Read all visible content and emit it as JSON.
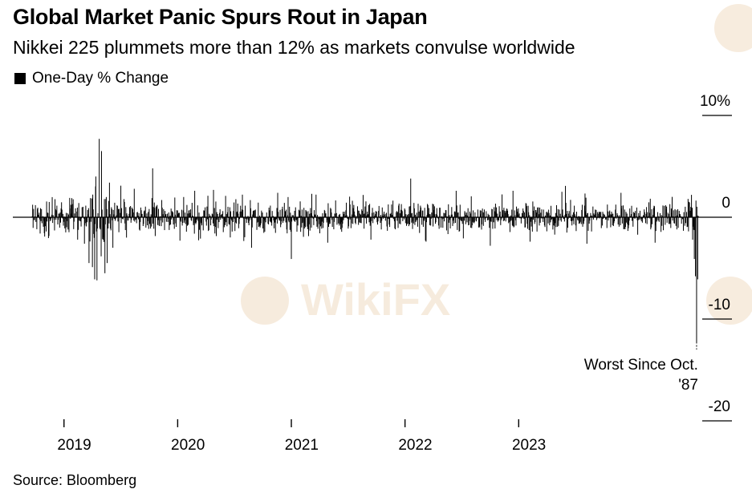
{
  "title": "Global Market Panic Spurs Rout in Japan",
  "subtitle": "Nikkei 225 plummets more than 12% as markets convulse worldwide",
  "legend": {
    "label": "One-Day % Change"
  },
  "source": "Source: Bloomberg",
  "watermark": "WikiFX",
  "colors": {
    "bar": "#000000",
    "axis": "#000000",
    "watermark": "#f0dcc2"
  },
  "chart_data": {
    "type": "bar",
    "title": "Global Market Panic Spurs Rout in Japan",
    "series": [
      {
        "name": "One-Day % Change"
      }
    ],
    "ylim": [
      -20,
      10
    ],
    "yticks": [
      {
        "value": 10,
        "label": "10%"
      },
      {
        "value": 0,
        "label": "0"
      },
      {
        "value": -10,
        "label": "-10"
      },
      {
        "value": -20,
        "label": "-20"
      }
    ],
    "xlim": [
      2018.55,
      2024.65
    ],
    "xticks": [
      {
        "value": 2019.0,
        "label": "2019"
      },
      {
        "value": 2020.0,
        "label": "2020"
      },
      {
        "value": 2021.0,
        "label": "2021"
      },
      {
        "value": 2022.0,
        "label": "2022"
      },
      {
        "value": 2023.0,
        "label": "2023"
      }
    ],
    "x_label_offset": 0.5,
    "daily_change": {
      "start": 2018.72,
      "end": 2024.58,
      "sessions": 1430,
      "typical_abs": 1.1,
      "regimes": [
        {
          "from": 2018.72,
          "to": 2018.98,
          "amp": 1.2
        },
        {
          "from": 2018.98,
          "to": 2019.22,
          "amp": 1.3
        },
        {
          "from": 2019.22,
          "to": 2019.42,
          "amp": 2.6
        },
        {
          "from": 2019.42,
          "to": 2020.6,
          "amp": 1.25
        },
        {
          "from": 2020.6,
          "to": 2021.55,
          "amp": 1.15
        },
        {
          "from": 2021.55,
          "to": 2024.48,
          "amp": 1.05
        },
        {
          "from": 2024.48,
          "to": 2024.58,
          "amp": 1.4
        }
      ],
      "notable": [
        {
          "x": 2018.79,
          "value": -1.6
        },
        {
          "x": 2018.83,
          "value": -1.9
        },
        {
          "x": 2018.87,
          "value": 1.5
        },
        {
          "x": 2019.05,
          "value": 1.9
        },
        {
          "x": 2019.12,
          "value": -2.2
        },
        {
          "x": 2019.18,
          "value": -2.6
        },
        {
          "x": 2019.22,
          "value": -4.5
        },
        {
          "x": 2019.25,
          "value": -4.9
        },
        {
          "x": 2019.27,
          "value": -6.1
        },
        {
          "x": 2019.28,
          "value": 4.0
        },
        {
          "x": 2019.29,
          "value": -6.2
        },
        {
          "x": 2019.31,
          "value": 7.7
        },
        {
          "x": 2019.33,
          "value": 6.5
        },
        {
          "x": 2019.36,
          "value": -5.5
        },
        {
          "x": 2019.38,
          "value": -4.5
        },
        {
          "x": 2019.4,
          "value": 3.4
        },
        {
          "x": 2019.43,
          "value": -3.0
        },
        {
          "x": 2019.5,
          "value": 3.1
        },
        {
          "x": 2019.55,
          "value": -2.0
        },
        {
          "x": 2019.78,
          "value": 4.8
        },
        {
          "x": 2020.02,
          "value": -2.3
        },
        {
          "x": 2020.15,
          "value": 2.6
        },
        {
          "x": 2020.65,
          "value": -3.0
        },
        {
          "x": 2020.88,
          "value": 2.4
        },
        {
          "x": 2021.0,
          "value": -4.1
        },
        {
          "x": 2021.18,
          "value": 2.3
        },
        {
          "x": 2021.32,
          "value": -2.5
        },
        {
          "x": 2021.7,
          "value": -2.2
        },
        {
          "x": 2022.05,
          "value": 3.8
        },
        {
          "x": 2022.18,
          "value": -2.3
        },
        {
          "x": 2022.45,
          "value": 2.6
        },
        {
          "x": 2022.75,
          "value": -2.8
        },
        {
          "x": 2022.95,
          "value": 2.6
        },
        {
          "x": 2023.1,
          "value": -2.4
        },
        {
          "x": 2023.38,
          "value": 2.5
        },
        {
          "x": 2023.6,
          "value": -2.6
        },
        {
          "x": 2023.9,
          "value": 2.4
        },
        {
          "x": 2024.2,
          "value": -2.5
        },
        {
          "x": 2024.35,
          "value": 2.0
        },
        {
          "x": 2024.49,
          "value": 1.8
        },
        {
          "x": 2024.52,
          "value": 2.2
        },
        {
          "x": 2024.53,
          "value": -2.2
        },
        {
          "x": 2024.545,
          "value": -4.1
        },
        {
          "x": 2024.555,
          "value": -5.8
        },
        {
          "x": 2024.565,
          "value": -12.4
        },
        {
          "x": 2024.575,
          "value": -6.1
        }
      ]
    },
    "annotation": {
      "lines": [
        "Worst Since Oct.",
        "'87"
      ],
      "x": 2024.565,
      "value": -12.4
    }
  }
}
